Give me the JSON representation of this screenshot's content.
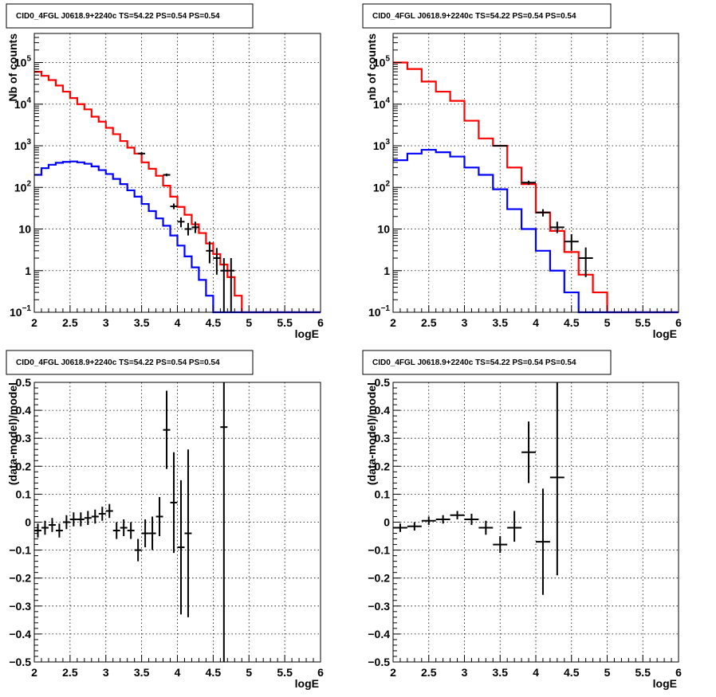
{
  "chart_data": [
    {
      "type": "line",
      "title": "CID0_4FGL J0618.9+2240c TS=54.22 PS=0.54 PS=0.54",
      "xlabel": "logE",
      "ylabel": "Nb of counts",
      "xlim": [
        2,
        6
      ],
      "ylim": [
        0.1,
        500000
      ],
      "yscale": "log",
      "grid": true,
      "x_ticks": [
        "2",
        "2.5",
        "3",
        "3.5",
        "4",
        "4.5",
        "5",
        "5.5",
        "6"
      ],
      "y_ticks": [
        {
          "value": 0.1,
          "label": "10",
          "sup": "−1"
        },
        {
          "value": 1,
          "label": "1",
          "sup": ""
        },
        {
          "value": 10,
          "label": "10",
          "sup": ""
        },
        {
          "value": 100,
          "label": "10",
          "sup": "2"
        },
        {
          "value": 1000,
          "label": "10",
          "sup": "3"
        },
        {
          "value": 10000,
          "label": "10",
          "sup": "4"
        },
        {
          "value": 100000,
          "label": "10",
          "sup": "5"
        }
      ],
      "bin_edges": [
        2.0,
        2.1,
        2.2,
        2.3,
        2.4,
        2.5,
        2.6,
        2.7,
        2.8,
        2.9,
        3.0,
        3.1,
        3.2,
        3.3,
        3.4,
        3.5,
        3.6,
        3.7,
        3.8,
        3.9,
        4.0,
        4.1,
        4.2,
        4.3,
        4.4,
        4.5,
        4.6,
        4.7,
        4.8,
        4.9,
        5.0,
        5.1,
        5.2,
        5.3,
        5.4,
        5.5,
        5.6,
        5.7,
        5.8,
        5.9,
        6.0
      ],
      "series": [
        {
          "name": "",
          "color": "#ff0000",
          "style": "step",
          "values": [
            60000,
            48000,
            38000,
            28000,
            20000,
            14000,
            10000,
            7500,
            5000,
            3800,
            2700,
            1900,
            1300,
            900,
            650,
            400,
            280,
            190,
            110,
            60,
            34,
            22,
            13,
            8,
            4.5,
            2.5,
            1.4,
            0.7,
            0.25,
            0.1,
            0.1,
            0.1,
            0.1,
            0.1,
            0.1,
            0.1,
            0.1,
            0.1,
            0.1,
            0.1
          ]
        },
        {
          "name": "",
          "color": "#0000ff",
          "style": "step",
          "values": [
            200,
            290,
            350,
            390,
            410,
            420,
            400,
            370,
            320,
            260,
            210,
            160,
            120,
            85,
            60,
            40,
            27,
            18,
            12,
            7,
            4,
            2.2,
            1.2,
            0.6,
            0.25,
            0.1,
            0.1,
            0.1,
            0.1,
            0.1,
            0.1,
            0.1,
            0.1,
            0.1,
            0.1,
            0.1,
            0.1,
            0.1,
            0.1,
            0.1
          ]
        },
        {
          "name": "",
          "color": "#000000",
          "style": "errorbar",
          "points": [
            {
              "x": 3.5,
              "y": 650,
              "xerr": 0.05,
              "ylo": 600,
              "yhi": 700
            },
            {
              "x": 3.85,
              "y": 200,
              "xerr": 0.05,
              "ylo": 185,
              "yhi": 215
            },
            {
              "x": 3.95,
              "y": 35,
              "xerr": 0.05,
              "ylo": 30,
              "yhi": 41
            },
            {
              "x": 4.05,
              "y": 15,
              "xerr": 0.05,
              "ylo": 11,
              "yhi": 19
            },
            {
              "x": 4.15,
              "y": 10,
              "xerr": 0.05,
              "ylo": 7,
              "yhi": 14
            },
            {
              "x": 4.25,
              "y": 11,
              "xerr": 0.05,
              "ylo": 8,
              "yhi": 15
            },
            {
              "x": 4.45,
              "y": 3,
              "xerr": 0.05,
              "ylo": 1.5,
              "yhi": 5
            },
            {
              "x": 4.55,
              "y": 2,
              "xerr": 0.05,
              "ylo": 0.8,
              "yhi": 3.5
            },
            {
              "x": 4.65,
              "y": 1,
              "xerr": 0.05,
              "ylo": 0.1,
              "yhi": 2
            },
            {
              "x": 4.75,
              "y": 1,
              "xerr": 0.05,
              "ylo": 0.1,
              "yhi": 2
            }
          ]
        }
      ]
    },
    {
      "type": "line",
      "title": "CID0_4FGL J0618.9+2240c TS=54.22 PS=0.54 PS=0.54",
      "xlabel": "logE",
      "ylabel": "nb of counts",
      "xlim": [
        2,
        6
      ],
      "ylim": [
        0.1,
        500000
      ],
      "yscale": "log",
      "grid": true,
      "x_ticks": [
        "2",
        "2.5",
        "3",
        "3.5",
        "4",
        "4.5",
        "5",
        "5.5",
        "6"
      ],
      "y_ticks": [
        {
          "value": 0.1,
          "label": "10",
          "sup": "−1"
        },
        {
          "value": 1,
          "label": "1",
          "sup": ""
        },
        {
          "value": 10,
          "label": "10",
          "sup": ""
        },
        {
          "value": 100,
          "label": "10",
          "sup": "2"
        },
        {
          "value": 1000,
          "label": "10",
          "sup": "3"
        },
        {
          "value": 10000,
          "label": "10",
          "sup": "4"
        },
        {
          "value": 100000,
          "label": "10",
          "sup": "5"
        }
      ],
      "bin_edges": [
        2.0,
        2.2,
        2.4,
        2.6,
        2.8,
        3.0,
        3.2,
        3.4,
        3.6,
        3.8,
        4.0,
        4.2,
        4.4,
        4.6,
        4.8,
        5.0,
        5.2,
        5.4,
        5.6,
        5.8,
        6.0
      ],
      "series": [
        {
          "name": "",
          "color": "#ff0000",
          "style": "step",
          "values": [
            100000,
            70000,
            35000,
            20000,
            12000,
            4000,
            1500,
            1000,
            300,
            120,
            25,
            9,
            2.8,
            0.8,
            0.3,
            0.1,
            0.1,
            0.1,
            0.1,
            0.1
          ]
        },
        {
          "name": "",
          "color": "#0000ff",
          "style": "step",
          "values": [
            450,
            650,
            800,
            700,
            550,
            300,
            200,
            90,
            30,
            10,
            3,
            1,
            0.3,
            0.1,
            0.1,
            0.1,
            0.1,
            0.1,
            0.1,
            0.1
          ]
        },
        {
          "name": "",
          "color": "#000000",
          "style": "errorbar",
          "points": [
            {
              "x": 3.5,
              "y": 1000,
              "xerr": 0.1,
              "ylo": 950,
              "yhi": 1050
            },
            {
              "x": 3.9,
              "y": 130,
              "xerr": 0.1,
              "ylo": 115,
              "yhi": 145
            },
            {
              "x": 4.1,
              "y": 25,
              "xerr": 0.1,
              "ylo": 20,
              "yhi": 30
            },
            {
              "x": 4.3,
              "y": 11,
              "xerr": 0.1,
              "ylo": 8,
              "yhi": 15
            },
            {
              "x": 4.5,
              "y": 5,
              "xerr": 0.1,
              "ylo": 3,
              "yhi": 7.5
            },
            {
              "x": 4.7,
              "y": 2,
              "xerr": 0.1,
              "ylo": 0.7,
              "yhi": 3.6
            }
          ]
        }
      ]
    },
    {
      "type": "scatter",
      "title": "CID0_4FGL J0618.9+2240c TS=54.22 PS=0.54 PS=0.54",
      "xlabel": "logE",
      "ylabel": "(data-model)/model",
      "xlim": [
        2,
        6
      ],
      "ylim": [
        -0.5,
        0.5
      ],
      "yscale": "linear",
      "grid": true,
      "x_ticks": [
        "2",
        "2.5",
        "3",
        "3.5",
        "4",
        "4.5",
        "5",
        "5.5",
        "6"
      ],
      "y_ticks": [
        {
          "value": -0.5,
          "label": "−0.5",
          "sup": ""
        },
        {
          "value": -0.4,
          "label": "−0.4",
          "sup": ""
        },
        {
          "value": -0.3,
          "label": "−0.3",
          "sup": ""
        },
        {
          "value": -0.2,
          "label": "−0.2",
          "sup": ""
        },
        {
          "value": -0.1,
          "label": "−0.1",
          "sup": ""
        },
        {
          "value": 0,
          "label": "0",
          "sup": ""
        },
        {
          "value": 0.1,
          "label": "0.1",
          "sup": ""
        },
        {
          "value": 0.2,
          "label": "0.2",
          "sup": ""
        },
        {
          "value": 0.3,
          "label": "0.3",
          "sup": ""
        },
        {
          "value": 0.4,
          "label": "0.4",
          "sup": ""
        },
        {
          "value": 0.5,
          "label": "0.5",
          "sup": ""
        }
      ],
      "series": [
        {
          "name": "",
          "color": "#000000",
          "style": "errorbar",
          "points": [
            {
              "x": 2.05,
              "y": -0.03,
              "xerr": 0.05,
              "ylo": -0.055,
              "yhi": -0.005
            },
            {
              "x": 2.15,
              "y": -0.02,
              "xerr": 0.05,
              "ylo": -0.045,
              "yhi": 0.005
            },
            {
              "x": 2.25,
              "y": -0.01,
              "xerr": 0.05,
              "ylo": -0.035,
              "yhi": 0.015
            },
            {
              "x": 2.35,
              "y": -0.03,
              "xerr": 0.05,
              "ylo": -0.055,
              "yhi": -0.005
            },
            {
              "x": 2.45,
              "y": 0.0,
              "xerr": 0.05,
              "ylo": -0.025,
              "yhi": 0.025
            },
            {
              "x": 2.55,
              "y": 0.01,
              "xerr": 0.05,
              "ylo": -0.015,
              "yhi": 0.035
            },
            {
              "x": 2.65,
              "y": 0.01,
              "xerr": 0.05,
              "ylo": -0.015,
              "yhi": 0.035
            },
            {
              "x": 2.75,
              "y": 0.015,
              "xerr": 0.05,
              "ylo": -0.01,
              "yhi": 0.04
            },
            {
              "x": 2.85,
              "y": 0.02,
              "xerr": 0.05,
              "ylo": -0.005,
              "yhi": 0.045
            },
            {
              "x": 2.95,
              "y": 0.03,
              "xerr": 0.05,
              "ylo": 0.005,
              "yhi": 0.055
            },
            {
              "x": 3.05,
              "y": 0.04,
              "xerr": 0.05,
              "ylo": 0.015,
              "yhi": 0.065
            },
            {
              "x": 3.15,
              "y": -0.03,
              "xerr": 0.05,
              "ylo": -0.06,
              "yhi": 0.0
            },
            {
              "x": 3.25,
              "y": -0.02,
              "xerr": 0.05,
              "ylo": -0.05,
              "yhi": 0.01
            },
            {
              "x": 3.35,
              "y": -0.03,
              "xerr": 0.05,
              "ylo": -0.06,
              "yhi": 0.0
            },
            {
              "x": 3.45,
              "y": -0.1,
              "xerr": 0.05,
              "ylo": -0.14,
              "yhi": -0.06
            },
            {
              "x": 3.55,
              "y": -0.04,
              "xerr": 0.05,
              "ylo": -0.09,
              "yhi": 0.01
            },
            {
              "x": 3.65,
              "y": -0.04,
              "xerr": 0.05,
              "ylo": -0.1,
              "yhi": 0.02
            },
            {
              "x": 3.75,
              "y": 0.02,
              "xerr": 0.05,
              "ylo": -0.05,
              "yhi": 0.09
            },
            {
              "x": 3.85,
              "y": 0.33,
              "xerr": 0.05,
              "ylo": 0.19,
              "yhi": 0.47
            },
            {
              "x": 3.95,
              "y": 0.07,
              "xerr": 0.05,
              "ylo": -0.11,
              "yhi": 0.25
            },
            {
              "x": 4.05,
              "y": -0.09,
              "xerr": 0.05,
              "ylo": -0.33,
              "yhi": 0.15
            },
            {
              "x": 4.15,
              "y": -0.04,
              "xerr": 0.05,
              "ylo": -0.34,
              "yhi": 0.26
            },
            {
              "x": 4.65,
              "y": 0.34,
              "xerr": 0.05,
              "ylo": -0.5,
              "yhi": 0.5
            }
          ]
        }
      ]
    },
    {
      "type": "scatter",
      "title": "CID0_4FGL J0618.9+2240c TS=54.22 PS=0.54 PS=0.54",
      "xlabel": "logE",
      "ylabel": "(data-model)/model",
      "xlim": [
        2,
        6
      ],
      "ylim": [
        -0.5,
        0.5
      ],
      "yscale": "linear",
      "grid": true,
      "x_ticks": [
        "2",
        "2.5",
        "3",
        "3.5",
        "4",
        "4.5",
        "5",
        "5.5",
        "6"
      ],
      "y_ticks": [
        {
          "value": -0.5,
          "label": "−0.5",
          "sup": ""
        },
        {
          "value": -0.4,
          "label": "−0.4",
          "sup": ""
        },
        {
          "value": -0.3,
          "label": "−0.3",
          "sup": ""
        },
        {
          "value": -0.2,
          "label": "−0.2",
          "sup": ""
        },
        {
          "value": -0.1,
          "label": "−0.1",
          "sup": ""
        },
        {
          "value": 0,
          "label": "0",
          "sup": ""
        },
        {
          "value": 0.1,
          "label": "0.1",
          "sup": ""
        },
        {
          "value": 0.2,
          "label": "0.2",
          "sup": ""
        },
        {
          "value": 0.3,
          "label": "0.3",
          "sup": ""
        },
        {
          "value": 0.4,
          "label": "0.4",
          "sup": ""
        },
        {
          "value": 0.5,
          "label": "0.5",
          "sup": ""
        }
      ],
      "series": [
        {
          "name": "",
          "color": "#000000",
          "style": "errorbar",
          "points": [
            {
              "x": 2.1,
              "y": -0.02,
              "xerr": 0.1,
              "ylo": -0.035,
              "yhi": -0.005
            },
            {
              "x": 2.3,
              "y": -0.015,
              "xerr": 0.1,
              "ylo": -0.03,
              "yhi": 0.0
            },
            {
              "x": 2.5,
              "y": 0.005,
              "xerr": 0.1,
              "ylo": -0.01,
              "yhi": 0.02
            },
            {
              "x": 2.7,
              "y": 0.01,
              "xerr": 0.1,
              "ylo": -0.005,
              "yhi": 0.025
            },
            {
              "x": 2.9,
              "y": 0.025,
              "xerr": 0.1,
              "ylo": 0.01,
              "yhi": 0.04
            },
            {
              "x": 3.1,
              "y": 0.01,
              "xerr": 0.1,
              "ylo": -0.01,
              "yhi": 0.03
            },
            {
              "x": 3.3,
              "y": -0.02,
              "xerr": 0.1,
              "ylo": -0.045,
              "yhi": 0.005
            },
            {
              "x": 3.5,
              "y": -0.08,
              "xerr": 0.1,
              "ylo": -0.11,
              "yhi": -0.05
            },
            {
              "x": 3.7,
              "y": -0.02,
              "xerr": 0.1,
              "ylo": -0.07,
              "yhi": 0.04
            },
            {
              "x": 3.9,
              "y": 0.25,
              "xerr": 0.1,
              "ylo": 0.14,
              "yhi": 0.36
            },
            {
              "x": 4.1,
              "y": -0.07,
              "xerr": 0.1,
              "ylo": -0.26,
              "yhi": 0.12
            },
            {
              "x": 4.3,
              "y": 0.16,
              "xerr": 0.1,
              "ylo": -0.19,
              "yhi": 0.5
            }
          ]
        }
      ]
    }
  ]
}
